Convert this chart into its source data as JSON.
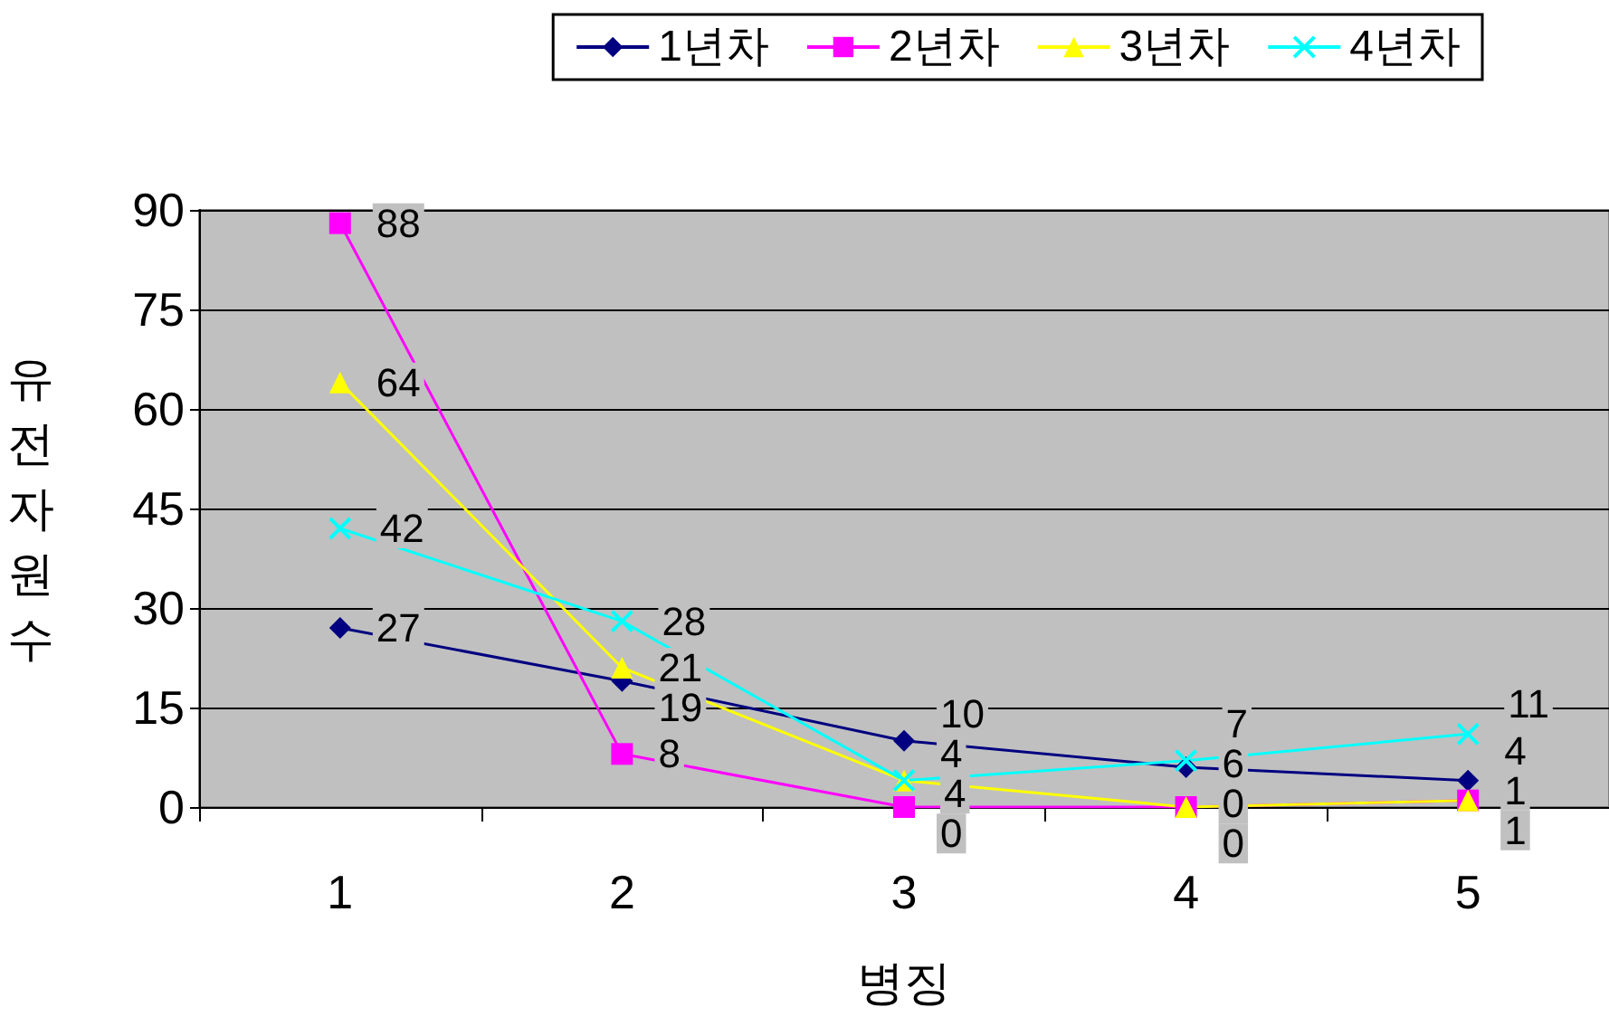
{
  "chart_data": {
    "type": "line",
    "xlabel": "병징",
    "ylabel": "유전자원수",
    "categories": [
      "1",
      "2",
      "3",
      "4",
      "5"
    ],
    "series": [
      {
        "name": "1년차",
        "color": "#000080",
        "marker": "diamond",
        "values": [
          27,
          19,
          10,
          6,
          4
        ]
      },
      {
        "name": "2년차",
        "color": "#ff00ff",
        "marker": "square",
        "values": [
          88,
          8,
          0,
          0,
          1
        ]
      },
      {
        "name": "3년차",
        "color": "#ffff00",
        "marker": "triangle",
        "values": [
          64,
          21,
          4,
          0,
          1
        ]
      },
      {
        "name": "4년차",
        "color": "#00ffff",
        "marker": "cross",
        "values": [
          42,
          28,
          4,
          7,
          11
        ]
      }
    ],
    "ylim": [
      0,
      90
    ],
    "yticks": [
      0,
      15,
      30,
      45,
      60,
      75,
      90
    ],
    "grid": "y",
    "legend": "top right",
    "data_labels": true
  }
}
